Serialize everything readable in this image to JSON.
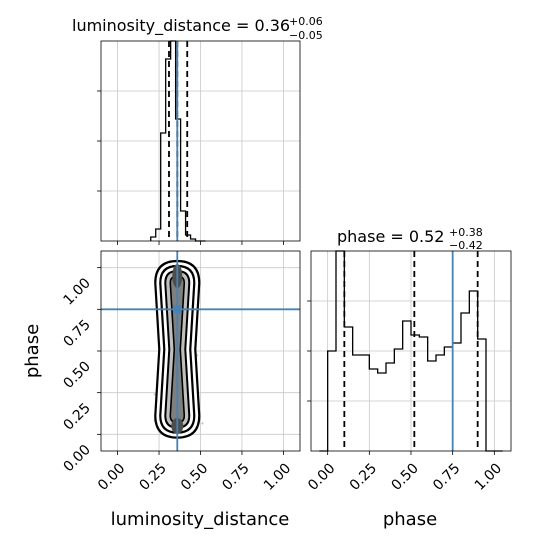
{
  "chart_data": {
    "type": "corner",
    "colors": {
      "truth": "#4682b4",
      "hist": "#000000",
      "grid": "#c8c8c8",
      "density_fill": "#4d4d4d",
      "scatter": "#000000"
    },
    "panels": {
      "luminosity_distance_hist": {
        "type": "histogram",
        "title_main": "luminosity_distance = 0.36",
        "title_plus": "+0.06",
        "title_minus": "−0.05",
        "xlim": [
          -0.1,
          1.1
        ],
        "ylim": [
          0,
          1
        ],
        "bins": [
          0.2,
          0.23,
          0.26,
          0.29,
          0.32,
          0.35,
          0.38,
          0.41,
          0.44,
          0.47,
          0.5,
          0.53
        ],
        "counts": [
          0.02,
          0.06,
          0.54,
          0.91,
          1.0,
          0.61,
          0.15,
          0.03,
          0.01,
          0.0,
          0.0
        ],
        "quantiles": [
          0.31,
          0.36,
          0.42
        ],
        "truth": 0.36,
        "xgrid": [
          0.0,
          0.25,
          0.5,
          0.75,
          1.0
        ],
        "ygrid": [
          0.25,
          0.5,
          0.75
        ]
      },
      "phase_hist": {
        "type": "histogram",
        "title_main": "phase = 0.52",
        "title_plus": "+0.38",
        "title_minus": "−0.42",
        "xlim": [
          -0.1,
          1.1
        ],
        "ylim": [
          0,
          1
        ],
        "bins": [
          -0.05,
          0.0,
          0.05,
          0.1,
          0.15,
          0.2,
          0.25,
          0.3,
          0.35,
          0.4,
          0.45,
          0.5,
          0.55,
          0.6,
          0.65,
          0.7,
          0.75,
          0.8,
          0.85,
          0.9,
          0.95,
          1.0,
          1.05
        ],
        "counts": [
          0.0,
          0.5,
          1.0,
          0.62,
          0.48,
          0.48,
          0.41,
          0.39,
          0.44,
          0.51,
          0.65,
          0.58,
          0.57,
          0.45,
          0.48,
          0.52,
          0.54,
          0.69,
          0.8,
          0.56,
          0.0,
          0.0
        ],
        "quantiles": [
          0.1,
          0.52,
          0.9
        ],
        "truth": 0.75,
        "xgrid": [
          0.0,
          0.25,
          0.5,
          0.75,
          1.0
        ],
        "ygrid": [
          0.25,
          0.5,
          0.75
        ]
      },
      "joint": {
        "type": "scatter_density",
        "x_param": "luminosity_distance",
        "y_param": "phase",
        "xlim": [
          -0.1,
          1.1
        ],
        "ylim": [
          -0.1,
          1.1
        ],
        "truth": {
          "x": 0.36,
          "y": 0.75
        },
        "x_center": 0.36,
        "x_spread": 0.04,
        "xgrid": [
          0.0,
          0.25,
          0.5,
          0.75,
          1.0
        ],
        "ygrid": [
          0.0,
          0.25,
          0.5,
          0.75,
          1.0
        ]
      }
    },
    "x_ticks": [
      "0.00",
      "0.25",
      "0.50",
      "0.75",
      "1.00"
    ],
    "x_tick_values": [
      0.0,
      0.25,
      0.5,
      0.75,
      1.0
    ],
    "y_ticks": [
      "0.00",
      "0.25",
      "0.50",
      "0.75",
      "1.00"
    ],
    "y_tick_values": [
      0.0,
      0.25,
      0.5,
      0.75,
      1.0
    ],
    "xlabel_left": "luminosity_distance",
    "xlabel_right": "phase",
    "ylabel": "phase"
  }
}
